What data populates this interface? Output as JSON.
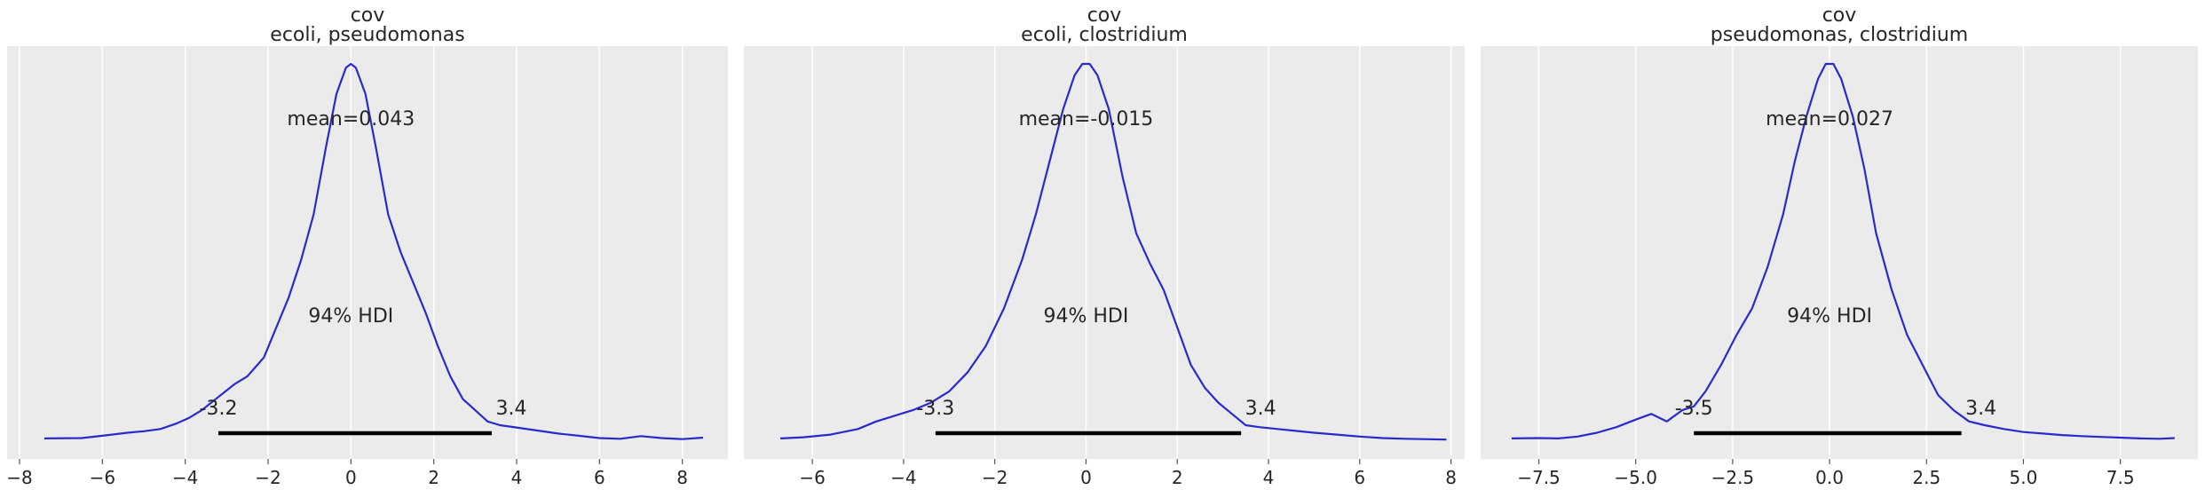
{
  "chart_data": [
    {
      "type": "area",
      "title": "cov",
      "subtitle": "ecoli, pseudomonas",
      "xlabel": "",
      "ylabel": "",
      "xlim": [
        -8.3,
        9.1
      ],
      "xticks": [
        -8,
        -6,
        -4,
        -2,
        0,
        2,
        4,
        6,
        8
      ],
      "xtick_labels": [
        "−8",
        "−6",
        "−4",
        "−2",
        "0",
        "2",
        "4",
        "6",
        "8"
      ],
      "mean_label": "mean=0.043",
      "hdi_label": "94% HDI",
      "hdi": [
        -3.2,
        3.4
      ],
      "hdi_lo_label": "-3.2",
      "hdi_hi_label": "3.4",
      "grid": true,
      "line_color": "#2a2acc",
      "density": {
        "x": [
          -7.4,
          -6.5,
          -6.0,
          -5.4,
          -5.0,
          -4.6,
          -4.2,
          -3.9,
          -3.6,
          -3.2,
          -2.8,
          -2.5,
          -2.1,
          -1.8,
          -1.5,
          -1.2,
          -0.9,
          -0.6,
          -0.35,
          -0.12,
          0.0,
          0.12,
          0.35,
          0.6,
          0.9,
          1.2,
          1.5,
          1.8,
          2.1,
          2.4,
          2.7,
          3.0,
          3.3,
          3.6,
          4.0,
          4.5,
          5.0,
          5.5,
          6.0,
          6.5,
          7.0,
          7.5,
          8.0,
          8.5
        ],
        "y": [
          0.005,
          0.006,
          0.012,
          0.02,
          0.024,
          0.03,
          0.045,
          0.06,
          0.08,
          0.115,
          0.15,
          0.17,
          0.22,
          0.3,
          0.38,
          0.48,
          0.6,
          0.78,
          0.92,
          0.99,
          1.0,
          0.99,
          0.92,
          0.78,
          0.6,
          0.5,
          0.42,
          0.34,
          0.25,
          0.17,
          0.11,
          0.08,
          0.05,
          0.04,
          0.034,
          0.026,
          0.018,
          0.012,
          0.006,
          0.004,
          0.011,
          0.006,
          0.003,
          0.007
        ]
      }
    },
    {
      "type": "area",
      "title": "cov",
      "subtitle": "ecoli, clostridium",
      "xlabel": "",
      "ylabel": "",
      "xlim": [
        -7.5,
        8.3
      ],
      "xticks": [
        -6,
        -4,
        -2,
        0,
        2,
        4,
        6,
        8
      ],
      "xtick_labels": [
        "−6",
        "−4",
        "−2",
        "0",
        "2",
        "4",
        "6",
        "8"
      ],
      "mean_label": "mean=-0.015",
      "hdi_label": "94% HDI",
      "hdi": [
        -3.3,
        3.4
      ],
      "hdi_lo_label": "-3.3",
      "hdi_hi_label": "3.4",
      "grid": true,
      "line_color": "#2a2acc",
      "density": {
        "x": [
          -6.7,
          -6.2,
          -5.6,
          -5.0,
          -4.6,
          -4.2,
          -3.8,
          -3.4,
          -3.0,
          -2.6,
          -2.2,
          -1.8,
          -1.4,
          -1.1,
          -0.8,
          -0.5,
          -0.25,
          -0.08,
          0.0,
          0.08,
          0.25,
          0.5,
          0.8,
          1.1,
          1.4,
          1.7,
          2.0,
          2.3,
          2.6,
          2.9,
          3.2,
          3.5,
          3.8,
          4.2,
          4.6,
          5.0,
          5.5,
          6.0,
          6.5,
          7.0,
          7.4,
          7.9
        ],
        "y": [
          0.005,
          0.008,
          0.015,
          0.03,
          0.05,
          0.065,
          0.08,
          0.1,
          0.13,
          0.18,
          0.25,
          0.35,
          0.48,
          0.6,
          0.74,
          0.88,
          0.97,
          1.0,
          1.0,
          1.0,
          0.97,
          0.88,
          0.7,
          0.55,
          0.47,
          0.4,
          0.3,
          0.2,
          0.14,
          0.1,
          0.07,
          0.04,
          0.035,
          0.03,
          0.025,
          0.02,
          0.015,
          0.01,
          0.006,
          0.004,
          0.003,
          0.002
        ]
      }
    },
    {
      "type": "area",
      "title": "cov",
      "subtitle": "pseudomonas, clostridium",
      "xlabel": "",
      "ylabel": "",
      "xlim": [
        -9.0,
        9.5
      ],
      "xticks": [
        -7.5,
        -5.0,
        -2.5,
        0.0,
        2.5,
        5.0,
        7.5
      ],
      "xtick_labels": [
        "−7.5",
        "−5.0",
        "−2.5",
        "0.0",
        "2.5",
        "5.0",
        "7.5"
      ],
      "mean_label": "mean=0.027",
      "hdi_label": "94% HDI",
      "hdi": [
        -3.5,
        3.4
      ],
      "hdi_lo_label": "-3.5",
      "hdi_hi_label": "3.4",
      "grid": true,
      "line_color": "#2a2acc",
      "density": {
        "x": [
          -8.2,
          -7.5,
          -7.0,
          -6.5,
          -6.0,
          -5.5,
          -5.0,
          -4.6,
          -4.2,
          -3.8,
          -3.5,
          -3.2,
          -2.8,
          -2.4,
          -2.0,
          -1.6,
          -1.2,
          -0.9,
          -0.6,
          -0.3,
          -0.1,
          0.0,
          0.1,
          0.3,
          0.6,
          0.9,
          1.2,
          1.6,
          2.0,
          2.4,
          2.8,
          3.2,
          3.6,
          4.0,
          4.5,
          5.0,
          5.5,
          6.0,
          6.5,
          7.0,
          7.5,
          8.0,
          8.5,
          8.9
        ],
        "y": [
          0.005,
          0.006,
          0.005,
          0.01,
          0.02,
          0.035,
          0.055,
          0.07,
          0.05,
          0.08,
          0.09,
          0.13,
          0.2,
          0.28,
          0.35,
          0.46,
          0.6,
          0.74,
          0.86,
          0.96,
          1.0,
          1.0,
          1.0,
          0.96,
          0.86,
          0.72,
          0.55,
          0.4,
          0.28,
          0.2,
          0.12,
          0.08,
          0.05,
          0.04,
          0.03,
          0.022,
          0.018,
          0.014,
          0.011,
          0.009,
          0.007,
          0.005,
          0.004,
          0.006
        ]
      }
    }
  ]
}
